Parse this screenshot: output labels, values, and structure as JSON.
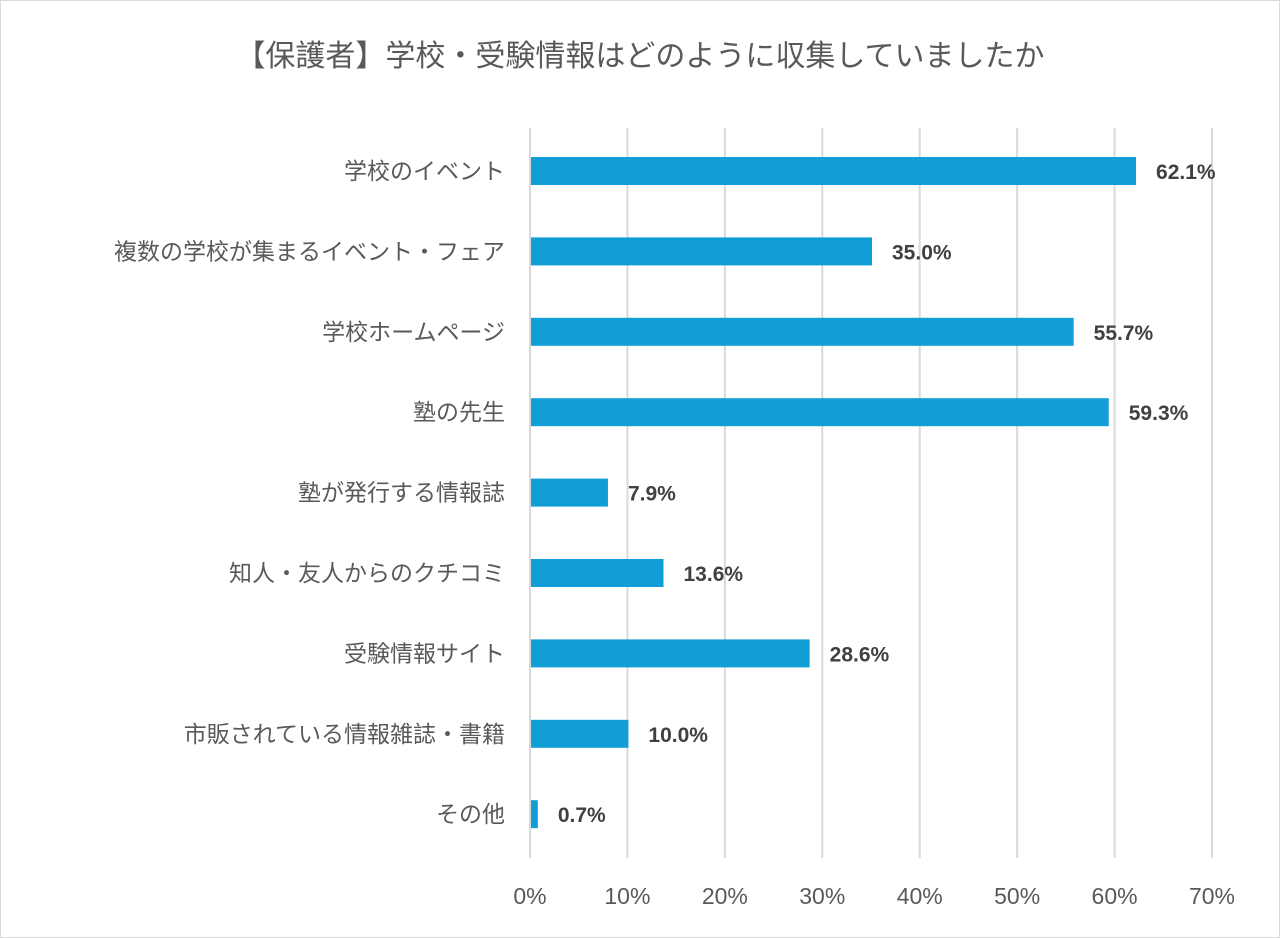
{
  "chart_data": {
    "type": "bar",
    "orientation": "horizontal",
    "title": "【保護者】学校・受験情報はどのように収集していましたか",
    "categories": [
      "学校のイベント",
      "複数の学校が集まるイベント・フェア",
      "学校ホームページ",
      "塾の先生",
      "塾が発行する情報誌",
      "知人・友人からのクチコミ",
      "受験情報サイト",
      "市販されている情報雑誌・書籍",
      "その他"
    ],
    "values": [
      62.1,
      35.0,
      55.7,
      59.3,
      7.9,
      13.6,
      28.6,
      10.0,
      0.7
    ],
    "data_labels": [
      "62.1%",
      "35.0%",
      "55.7%",
      "59.3%",
      "7.9%",
      "13.6%",
      "28.6%",
      "10.0%",
      "0.7%"
    ],
    "xlim": [
      0,
      70
    ],
    "x_ticks": [
      "0%",
      "10%",
      "20%",
      "30%",
      "40%",
      "50%",
      "60%",
      "70%"
    ],
    "grid": true,
    "xlabel": "",
    "ylabel": "",
    "bar_color": "#119dd6"
  }
}
